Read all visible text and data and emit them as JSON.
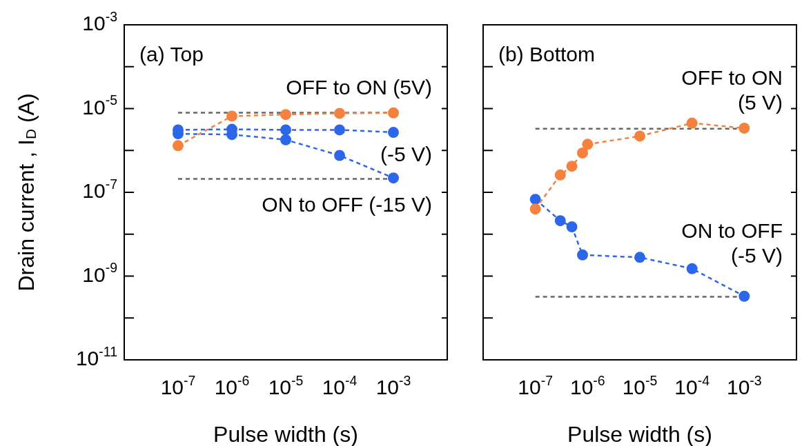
{
  "chart_data": [
    {
      "type": "line",
      "ylabel": "Drain current , I$_{D}$ (A)",
      "xlabel": "Pulse width (s)",
      "log": "xy",
      "marker": "circle",
      "line_style": "dashed",
      "grid": false,
      "legend": false,
      "xlim": [
        1e-08,
        0.01
      ],
      "xticks": [
        {
          "value": 1e-07,
          "label": "10$^{-7}$"
        },
        {
          "value": 1e-06,
          "label": "10$^{-6}$"
        },
        {
          "value": 1e-05,
          "label": "10$^{-5}$"
        },
        {
          "value": 0.0001,
          "label": "10$^{-4}$"
        },
        {
          "value": 0.001,
          "label": "10$^{-3}$"
        }
      ],
      "ylim": [
        1e-11,
        0.001
      ],
      "yticks": [
        {
          "value": 1e-11,
          "label": "10$^{-11}$"
        },
        {
          "value": 1e-10,
          "label": null
        },
        {
          "value": 1e-09,
          "label": "10$^{-9}$"
        },
        {
          "value": 1e-08,
          "label": null
        },
        {
          "value": 1e-07,
          "label": "10$^{-7}$"
        },
        {
          "value": 1e-06,
          "label": null
        },
        {
          "value": 1e-05,
          "label": "10$^{-5}$"
        },
        {
          "value": 0.0001,
          "label": null
        },
        {
          "value": 0.001,
          "label": "10$^{-3}$"
        }
      ],
      "x": [
        1e-07,
        1e-06,
        1e-05,
        0.0001,
        0.001
      ],
      "series": [
        {
          "color": "#f4813e",
          "values": [
            1.3e-06,
            6.6e-06,
            7.2e-06,
            7.7e-06,
            7.9e-06
          ]
        },
        {
          "color": "#2b67e8",
          "values": [
            3.1e-06,
            3.2e-06,
            3.1e-06,
            3.1e-06,
            2.7e-06
          ]
        },
        {
          "color": "#2b67e8",
          "values": [
            2.5e-06,
            2.4e-06,
            1.8e-06,
            7.6e-07,
            2.2e-07
          ]
        }
      ],
      "ref_lines": [
        {
          "axis": "y",
          "value": 8e-06,
          "color": "#666666",
          "line_style": "dashed"
        },
        {
          "axis": "y",
          "value": 2.1e-07,
          "color": "#666666",
          "line_style": "dashed"
        }
      ],
      "annotations": [
        "(a) Top",
        "OFF to ON (5V)",
        "(-5 V)",
        "ON to OFF (-15 V)"
      ]
    },
    {
      "type": "line",
      "xlabel": "Pulse width (s)",
      "log": "xy",
      "marker": "circle",
      "line_style": "dashed",
      "grid": false,
      "legend": false,
      "tick_labels": "x",
      "xlim": [
        1e-08,
        0.01
      ],
      "xticks": [
        {
          "value": 1e-07,
          "label": "10$^{-7}$"
        },
        {
          "value": 1e-06,
          "label": "10$^{-6}$"
        },
        {
          "value": 1e-05,
          "label": "10$^{-5}$"
        },
        {
          "value": 0.0001,
          "label": "10$^{-4}$"
        },
        {
          "value": 0.001,
          "label": "10$^{-3}$"
        }
      ],
      "ylim": [
        1e-11,
        0.001
      ],
      "yticks": [
        {
          "value": 1e-11,
          "label": null
        },
        {
          "value": 1e-10,
          "label": null
        },
        {
          "value": 1e-09,
          "label": null
        },
        {
          "value": 1e-08,
          "label": null
        },
        {
          "value": 1e-07,
          "label": null
        },
        {
          "value": 1e-06,
          "label": null
        },
        {
          "value": 1e-05,
          "label": null
        },
        {
          "value": 0.0001,
          "label": null
        },
        {
          "value": 0.001,
          "label": null
        }
      ],
      "series": [
        {
          "color": "#f4813e",
          "x": [
            1e-07,
            3e-07,
            5e-07,
            8e-07,
            1e-06,
            1e-05,
            0.0001,
            0.001
          ],
          "values": [
            4e-08,
            2.6e-07,
            4.2e-07,
            8.7e-07,
            1.4e-06,
            2.2e-06,
            4.5e-06,
            3.4e-06
          ]
        },
        {
          "color": "#2b67e8",
          "x": [
            1e-07,
            3e-07,
            5e-07,
            8e-07,
            1e-05,
            0.0001,
            0.001
          ],
          "values": [
            6.8e-08,
            2.1e-08,
            1.5e-08,
            3.2e-09,
            2.8e-09,
            1.5e-09,
            3.3e-10
          ]
        }
      ],
      "ref_lines": [
        {
          "axis": "y",
          "value": 3.3e-06,
          "color": "#666666",
          "line_style": "dashed"
        },
        {
          "axis": "y",
          "value": 3.2e-10,
          "color": "#666666",
          "line_style": "dashed"
        }
      ],
      "annotations": [
        "(b) Bottom",
        "OFF to ON\n(5 V)",
        "ON to OFF\n(-5 V)"
      ]
    }
  ]
}
